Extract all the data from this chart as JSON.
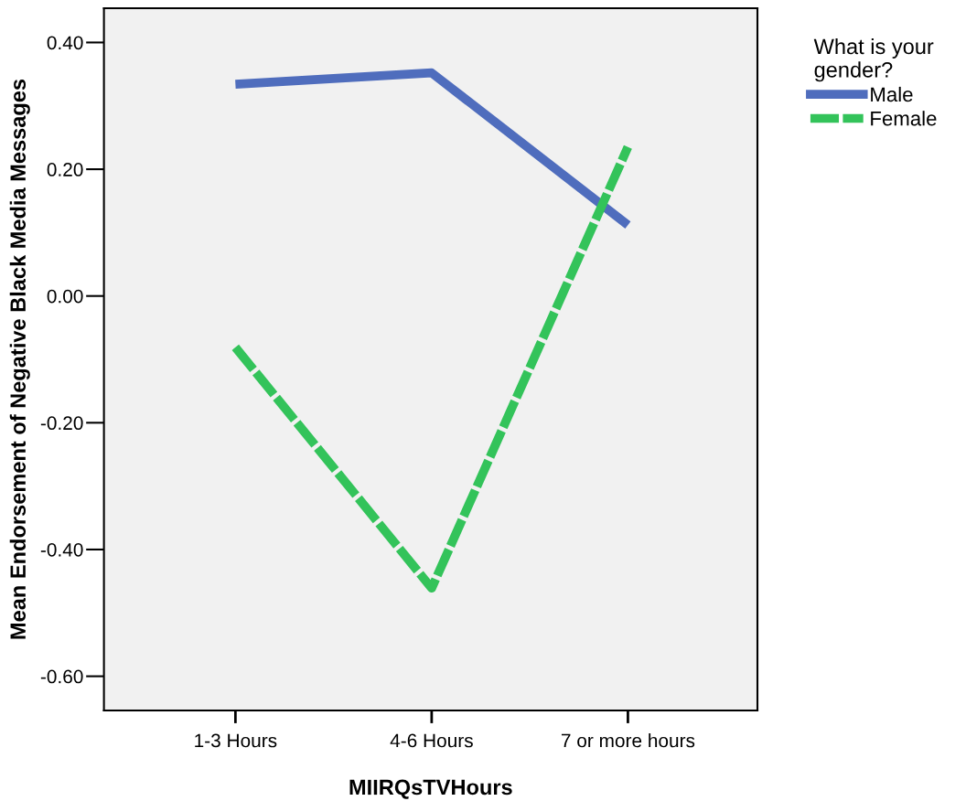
{
  "chart_data": {
    "type": "line",
    "xlabel": "MIIRQsTVHours",
    "ylabel": "Mean Endorsement of Negative Black Media Messages",
    "legend_title": "What is your\ngender?",
    "categories": [
      "1-3 Hours",
      "4-6 Hours",
      "7 or more hours"
    ],
    "series": [
      {
        "name": "Male",
        "color": "#4f6dbd",
        "values": [
          0.334,
          0.352,
          0.112
        ],
        "line_style": "solid"
      },
      {
        "name": "Female",
        "color": "#33c35a",
        "values": [
          -0.081,
          -0.461,
          0.235
        ],
        "line_style": "dashed"
      }
    ],
    "ylim": [
      -0.654,
      0.454
    ],
    "yticks": [
      {
        "value": -0.6,
        "label": "-0.60"
      },
      {
        "value": -0.4,
        "label": "-0.40"
      },
      {
        "value": -0.2,
        "label": "-0.20"
      },
      {
        "value": 0,
        "label": "0.00"
      },
      {
        "value": 0.2,
        "label": "0.20"
      },
      {
        "value": 0.4,
        "label": "0.40"
      }
    ],
    "grid": false,
    "legend": "top right",
    "marker": "none"
  }
}
